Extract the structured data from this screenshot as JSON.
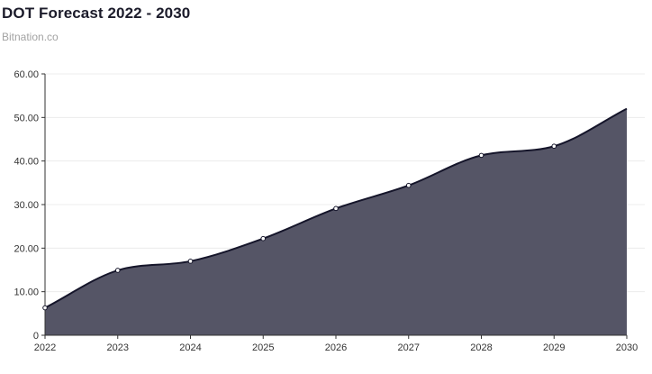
{
  "header": {
    "title": "DOT Forecast 2022 - 2030",
    "subtitle": "Bitnation.co"
  },
  "chart_data": {
    "type": "area",
    "title": "DOT Forecast 2022 - 2030",
    "subtitle": "Bitnation.co",
    "xlabel": "",
    "ylabel": "",
    "x": [
      "2022",
      "2023",
      "2024",
      "2025",
      "2026",
      "2027",
      "2028",
      "2029",
      "2030"
    ],
    "series": [
      {
        "values": [
          6.3,
          14.9,
          17.0,
          22.2,
          29.1,
          34.4,
          41.3,
          43.4,
          52.0
        ]
      }
    ],
    "ylim": [
      0,
      60
    ],
    "yticks": [
      "0",
      "10.00",
      "20.00",
      "30.00",
      "40.00",
      "50.00",
      "60.00"
    ],
    "grid": true,
    "legend": "none",
    "colors": {
      "fill": "#555566",
      "line": "#15152a",
      "point_fill": "#ffffff",
      "grid": "#ececec",
      "axis": "#333333"
    }
  }
}
